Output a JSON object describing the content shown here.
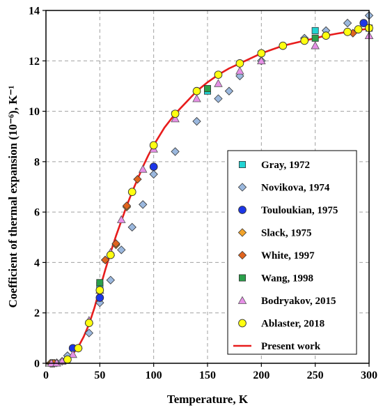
{
  "chart_data": {
    "type": "scatter",
    "title": "",
    "xlabel": "Temperature, K",
    "ylabel": "Coefficient of thermal expansion (10⁻⁶), K⁻¹",
    "xlim": [
      0,
      300
    ],
    "ylim": [
      0,
      14
    ],
    "x_ticks": [
      0,
      50,
      100,
      150,
      200,
      250,
      300
    ],
    "y_ticks": [
      0,
      2,
      4,
      6,
      8,
      10,
      12,
      14
    ],
    "x_tick_labels": [
      "0",
      "50",
      "100",
      "150",
      "200",
      "250",
      "300"
    ],
    "y_tick_labels": [
      "0",
      "2",
      "4",
      "6",
      "8",
      "10",
      "12",
      "14"
    ],
    "grid": "dashed",
    "legend_position": "bottom-right",
    "series": [
      {
        "name": "Gray, 1972",
        "marker": "square",
        "color": "#22d3d3",
        "points": [
          [
            50,
            3.1
          ],
          [
            150,
            10.8
          ],
          [
            250,
            13.2
          ],
          [
            300,
            13.3
          ]
        ]
      },
      {
        "name": "Novikova, 1974",
        "marker": "diamond",
        "color": "#9bb8de",
        "points": [
          [
            5,
            0.0
          ],
          [
            10,
            0.02
          ],
          [
            15,
            0.08
          ],
          [
            20,
            0.3
          ],
          [
            30,
            0.6
          ],
          [
            40,
            1.2
          ],
          [
            50,
            2.4
          ],
          [
            60,
            3.3
          ],
          [
            70,
            4.5
          ],
          [
            80,
            5.4
          ],
          [
            90,
            6.3
          ],
          [
            100,
            7.5
          ],
          [
            120,
            8.4
          ],
          [
            140,
            9.6
          ],
          [
            160,
            10.5
          ],
          [
            170,
            10.8
          ],
          [
            180,
            11.4
          ],
          [
            200,
            12.0
          ],
          [
            240,
            12.9
          ],
          [
            260,
            13.2
          ],
          [
            280,
            13.5
          ],
          [
            300,
            13.8
          ]
        ]
      },
      {
        "name": "Touloukian, 1975",
        "marker": "circle",
        "color": "#1c36e8",
        "points": [
          [
            25,
            0.6
          ],
          [
            50,
            2.6
          ],
          [
            100,
            7.8
          ],
          [
            295,
            13.5
          ]
        ]
      },
      {
        "name": "Slack, 1975",
        "marker": "diamond",
        "color": "#f2a32a",
        "points": [
          [
            4,
            0.0
          ],
          [
            6,
            0.0
          ],
          [
            8,
            0.0
          ],
          [
            65,
            4.7
          ],
          [
            75,
            6.2
          ]
        ]
      },
      {
        "name": "White, 1997",
        "marker": "diamond",
        "color": "#e0641e",
        "points": [
          [
            5,
            0.0
          ],
          [
            7,
            0.0
          ],
          [
            55,
            4.1
          ],
          [
            65,
            4.75
          ],
          [
            75,
            6.25
          ],
          [
            85,
            7.3
          ],
          [
            285,
            13.1
          ]
        ]
      },
      {
        "name": "Wang, 1998",
        "marker": "square",
        "color": "#2aa04a",
        "points": [
          [
            50,
            3.2
          ],
          [
            150,
            10.9
          ],
          [
            250,
            12.9
          ]
        ]
      },
      {
        "name": "Bodryakov, 2015",
        "marker": "triangle",
        "color": "#e690e6",
        "points": [
          [
            5,
            0.0
          ],
          [
            10,
            0.01
          ],
          [
            15,
            0.08
          ],
          [
            25,
            0.35
          ],
          [
            40,
            1.7
          ],
          [
            50,
            2.9
          ],
          [
            60,
            4.4
          ],
          [
            70,
            5.7
          ],
          [
            90,
            7.7
          ],
          [
            100,
            8.5
          ],
          [
            120,
            9.7
          ],
          [
            140,
            10.5
          ],
          [
            160,
            11.1
          ],
          [
            180,
            11.6
          ],
          [
            200,
            12.0
          ],
          [
            250,
            12.6
          ],
          [
            300,
            13.0
          ]
        ]
      },
      {
        "name": "Ablaster, 2018",
        "marker": "circle",
        "color": "#ffff10",
        "points": [
          [
            20,
            0.15
          ],
          [
            30,
            0.6
          ],
          [
            40,
            1.6
          ],
          [
            50,
            2.9
          ],
          [
            60,
            4.3
          ],
          [
            80,
            6.8
          ],
          [
            100,
            8.65
          ],
          [
            120,
            9.9
          ],
          [
            140,
            10.8
          ],
          [
            160,
            11.45
          ],
          [
            180,
            11.9
          ],
          [
            200,
            12.3
          ],
          [
            220,
            12.6
          ],
          [
            240,
            12.8
          ],
          [
            260,
            13.0
          ],
          [
            280,
            13.15
          ],
          [
            290,
            13.25
          ],
          [
            300,
            13.3
          ]
        ]
      },
      {
        "name": "Present work",
        "marker": "line",
        "color": "#e81c1c",
        "points": [
          [
            0,
            0.0
          ],
          [
            5,
            0.003
          ],
          [
            10,
            0.02
          ],
          [
            15,
            0.08
          ],
          [
            20,
            0.18
          ],
          [
            25,
            0.38
          ],
          [
            30,
            0.65
          ],
          [
            35,
            1.05
          ],
          [
            40,
            1.55
          ],
          [
            45,
            2.2
          ],
          [
            50,
            2.95
          ],
          [
            55,
            3.7
          ],
          [
            60,
            4.4
          ],
          [
            65,
            5.05
          ],
          [
            70,
            5.65
          ],
          [
            75,
            6.25
          ],
          [
            80,
            6.8
          ],
          [
            85,
            7.3
          ],
          [
            90,
            7.8
          ],
          [
            95,
            8.25
          ],
          [
            100,
            8.65
          ],
          [
            110,
            9.35
          ],
          [
            120,
            9.9
          ],
          [
            130,
            10.35
          ],
          [
            140,
            10.8
          ],
          [
            150,
            11.15
          ],
          [
            160,
            11.45
          ],
          [
            170,
            11.7
          ],
          [
            180,
            11.9
          ],
          [
            190,
            12.1
          ],
          [
            200,
            12.3
          ],
          [
            210,
            12.45
          ],
          [
            220,
            12.6
          ],
          [
            230,
            12.7
          ],
          [
            240,
            12.8
          ],
          [
            250,
            12.9
          ],
          [
            260,
            13.0
          ],
          [
            270,
            13.08
          ],
          [
            280,
            13.15
          ],
          [
            290,
            13.22
          ],
          [
            300,
            13.28
          ]
        ]
      }
    ]
  },
  "colors": {
    "axis": "#000000",
    "grid": "#a0a0a0",
    "legend_border": "#000000"
  }
}
